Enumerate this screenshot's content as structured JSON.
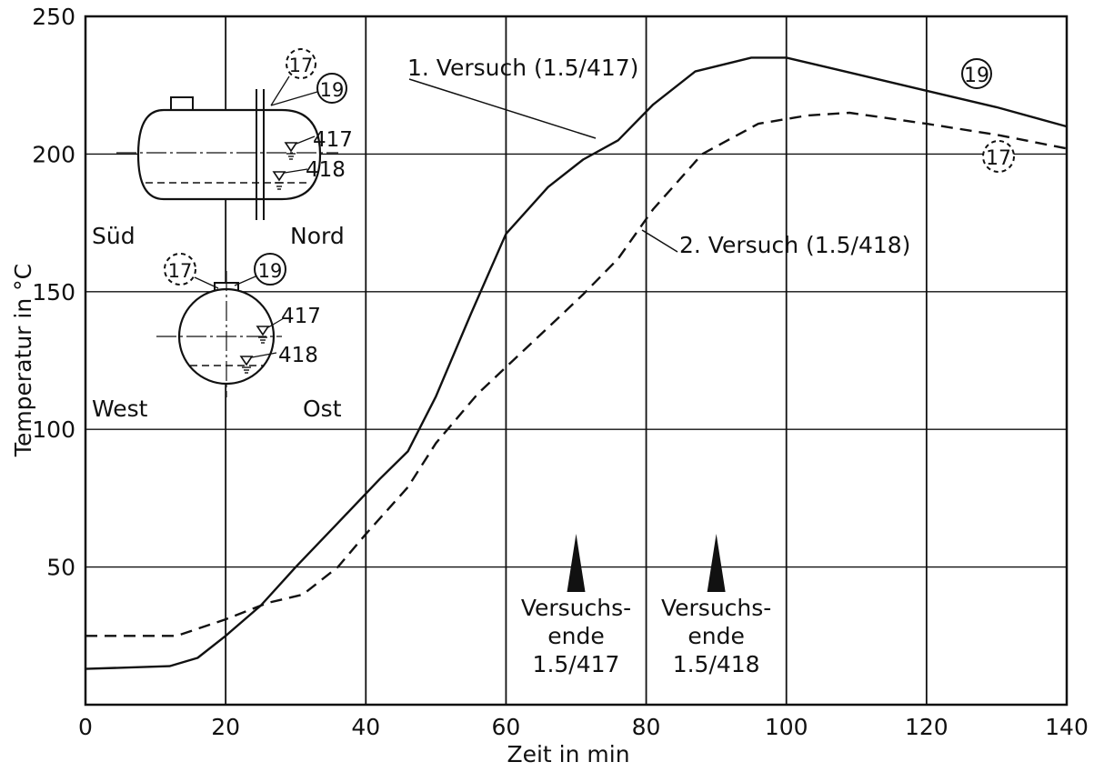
{
  "chart_data": {
    "type": "line",
    "xlabel": "Zeit in min",
    "ylabel": "Temperatur in °C",
    "xlim": [
      0,
      140
    ],
    "ylim": [
      0,
      250
    ],
    "x_ticks": [
      0,
      20,
      40,
      60,
      80,
      100,
      120,
      140
    ],
    "y_ticks": [
      50,
      100,
      150,
      200,
      250
    ],
    "x_tick_labels": [
      "0",
      "20",
      "40",
      "60",
      "80",
      "100",
      "120",
      "140"
    ],
    "y_tick_labels": [
      "50",
      "100",
      "150",
      "200",
      "250"
    ],
    "grid": true,
    "series": [
      {
        "name": "1. Versuch (1.5/417)",
        "marker": "19",
        "style": "solid",
        "x": [
          0,
          12,
          16,
          20,
          25,
          30,
          36,
          42,
          46,
          50,
          55,
          60,
          66,
          71,
          76,
          81,
          87,
          95,
          100,
          110,
          120,
          130,
          140
        ],
        "y": [
          13,
          14,
          17,
          25,
          36,
          50,
          66,
          82,
          92,
          112,
          142,
          171,
          188,
          198,
          205,
          218,
          230,
          235,
          235,
          229,
          223,
          217,
          210
        ]
      },
      {
        "name": "2. Versuch (1.5/418)",
        "marker": "17",
        "style": "dashed",
        "x": [
          0,
          13,
          20,
          26,
          31,
          36,
          40,
          46,
          50,
          56,
          61,
          66,
          71,
          76,
          81,
          88,
          96,
          103,
          109,
          120,
          130,
          140
        ],
        "y": [
          25,
          25,
          31,
          37,
          40,
          50,
          62,
          79,
          95,
          113,
          125,
          137,
          149,
          162,
          180,
          200,
          211,
          214,
          215,
          211,
          207,
          202
        ]
      }
    ],
    "annotations": [
      {
        "x": 70,
        "lines": [
          "Versuchs-",
          "ende",
          "1.5/417"
        ]
      },
      {
        "x": 90,
        "lines": [
          "Versuchs-",
          "ende",
          "1.5/418"
        ]
      }
    ],
    "inset": {
      "top_view": {
        "left": "Süd",
        "right": "Nord",
        "markers": [
          "17",
          "19"
        ],
        "levels": [
          "417",
          "418"
        ]
      },
      "side_view": {
        "left": "West",
        "right": "Ost",
        "markers": [
          "17",
          "19"
        ],
        "levels": [
          "417",
          "418"
        ]
      }
    }
  }
}
